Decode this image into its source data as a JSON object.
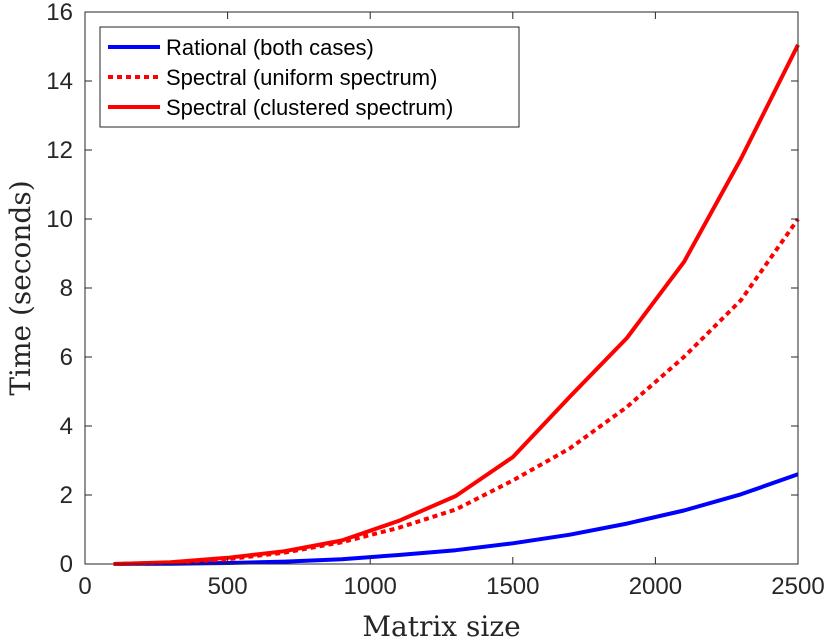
{
  "chart_data": {
    "type": "line",
    "title": "",
    "xlabel": "Matrix size",
    "ylabel": "Time (seconds)",
    "xlim": [
      0,
      2500
    ],
    "ylim": [
      0,
      16
    ],
    "xticks": [
      0,
      500,
      1000,
      1500,
      2000,
      2500
    ],
    "yticks": [
      0,
      2,
      4,
      6,
      8,
      10,
      12,
      14,
      16
    ],
    "xtick_labels": [
      "0",
      "500",
      "1000",
      "1500",
      "2000",
      "2500"
    ],
    "ytick_labels": [
      "0",
      "2",
      "4",
      "6",
      "8",
      "10",
      "12",
      "14",
      "16"
    ],
    "grid": false,
    "legend_position": "top-left",
    "x": [
      100,
      300,
      500,
      700,
      900,
      1100,
      1300,
      1500,
      1700,
      1900,
      2100,
      2300,
      2500
    ],
    "series": [
      {
        "name": "Rational (both cases)",
        "color": "#0000ff",
        "style": "solid",
        "values": [
          0.0,
          0.01,
          0.03,
          0.07,
          0.14,
          0.26,
          0.4,
          0.6,
          0.85,
          1.17,
          1.55,
          2.02,
          2.6
        ]
      },
      {
        "name": "Spectral (uniform spectrum)",
        "color": "#ff0000",
        "style": "dotted",
        "values": [
          0.0,
          0.04,
          0.14,
          0.33,
          0.63,
          1.05,
          1.58,
          2.42,
          3.35,
          4.55,
          6.0,
          7.65,
          10.0
        ]
      },
      {
        "name": "Spectral (clustered spectrum)",
        "color": "#ff0000",
        "style": "solid",
        "values": [
          0.0,
          0.05,
          0.18,
          0.37,
          0.68,
          1.25,
          1.97,
          3.1,
          4.85,
          6.55,
          8.75,
          11.75,
          15.05
        ]
      }
    ]
  }
}
